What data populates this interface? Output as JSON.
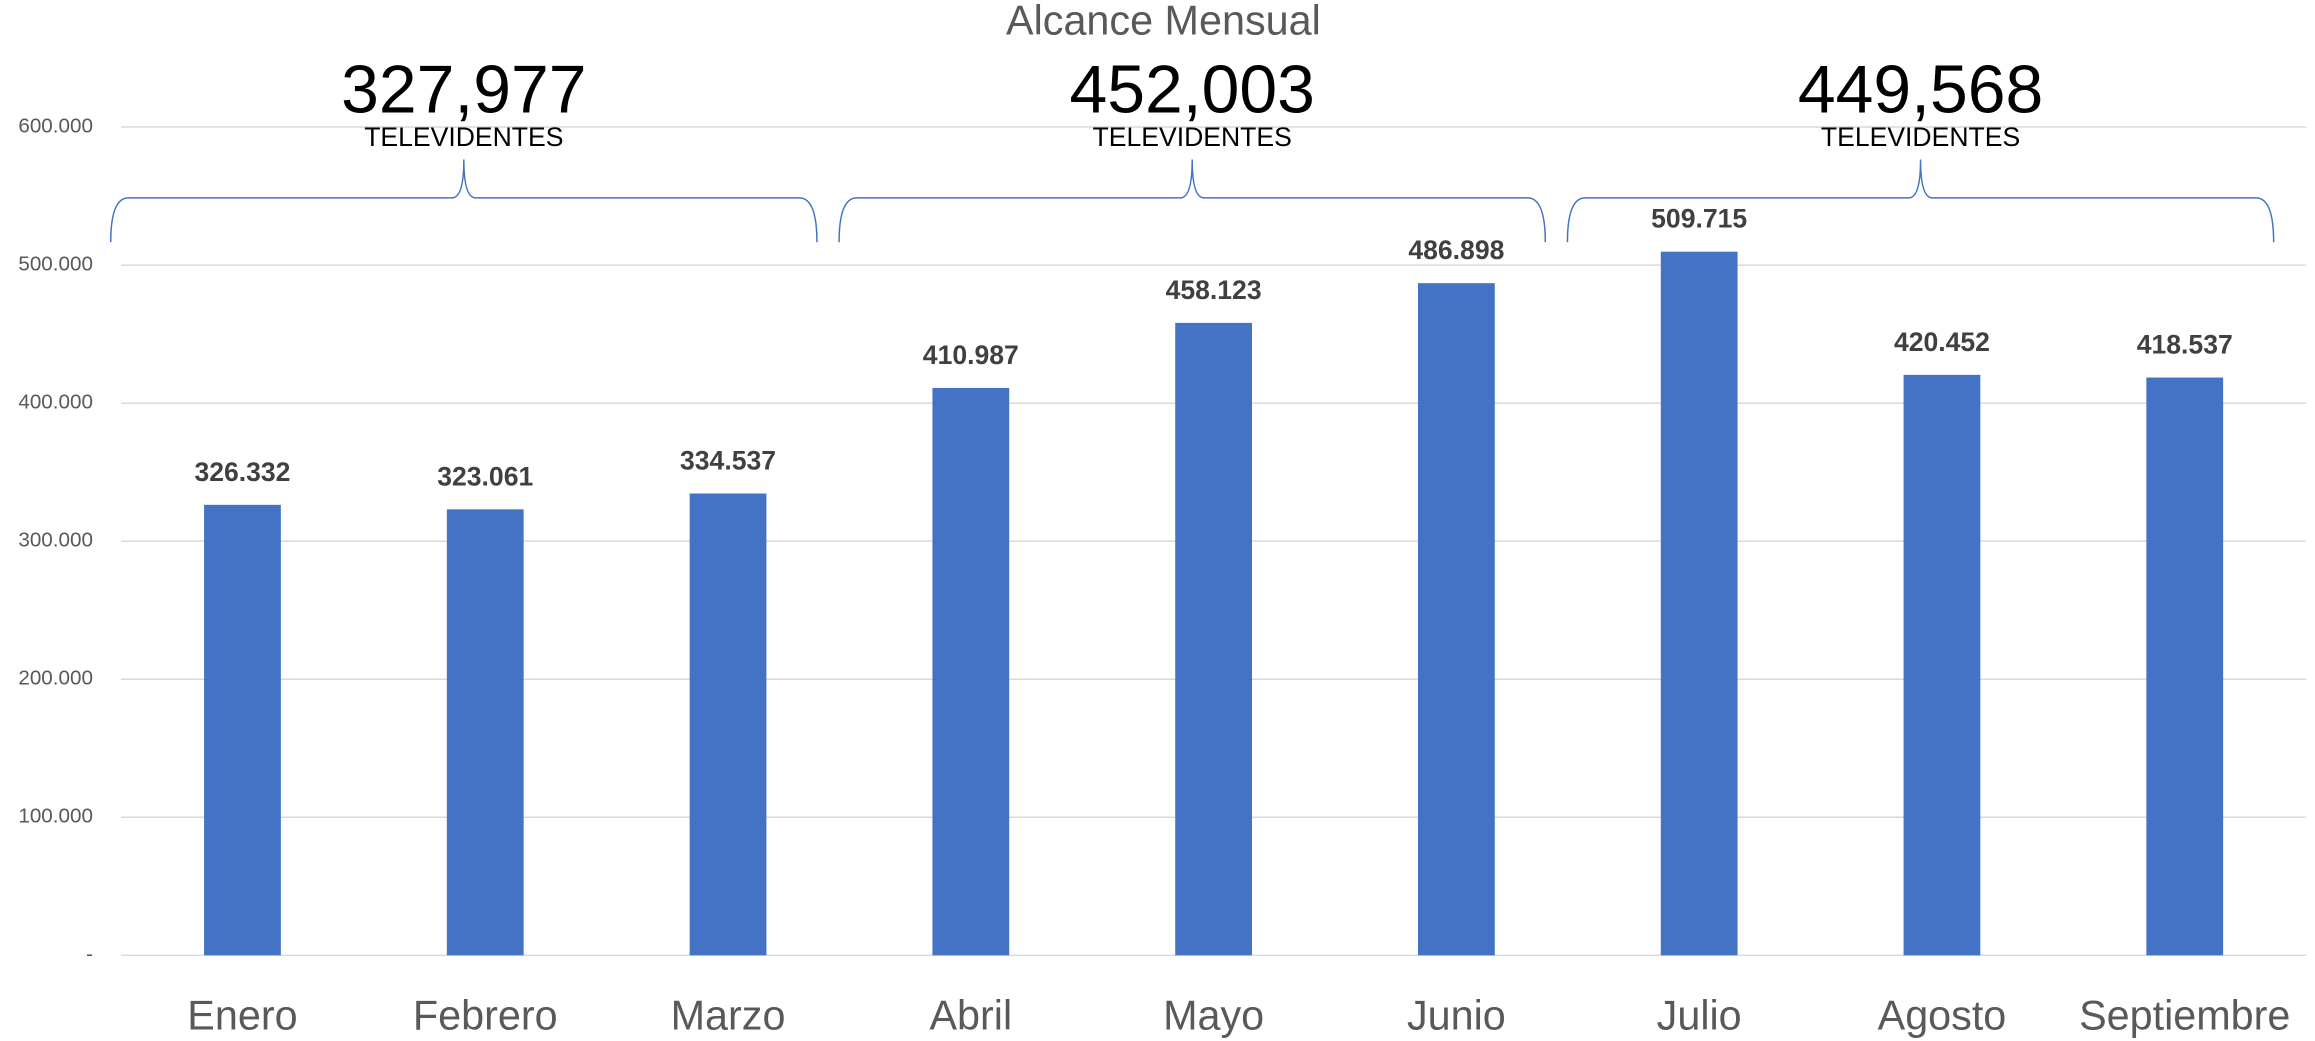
{
  "chart_data": {
    "type": "bar",
    "title": "Alcance Mensual",
    "categories": [
      "Enero",
      "Febrero",
      "Marzo",
      "Abril",
      "Mayo",
      "Junio",
      "Julio",
      "Agosto",
      "Septiembre"
    ],
    "values": [
      326332,
      323061,
      334537,
      410987,
      458123,
      486898,
      509715,
      420452,
      418537
    ],
    "value_labels": [
      "326.332",
      "323.061",
      "334.537",
      "410.987",
      "458.123",
      "486.898",
      "509.715",
      "420.452",
      "418.537"
    ],
    "color": "#4472c4",
    "ylim": [
      0,
      600000
    ],
    "yticks": [
      {
        "value": 0,
        "label": "-"
      },
      {
        "value": 100000,
        "label": "100.000"
      },
      {
        "value": 200000,
        "label": "200.000"
      },
      {
        "value": 300000,
        "label": "300.000"
      },
      {
        "value": 400000,
        "label": "400.000"
      },
      {
        "value": 500000,
        "label": "500.000"
      },
      {
        "value": 600000,
        "label": "600.000"
      }
    ],
    "grid": true,
    "annotations": [
      {
        "label": "327,977",
        "note": "TELEVIDENTES"
      },
      {
        "label": "452,003",
        "note": "TELEVIDENTES"
      },
      {
        "label": "449,568",
        "note": "TELEVIDENTES"
      }
    ]
  }
}
